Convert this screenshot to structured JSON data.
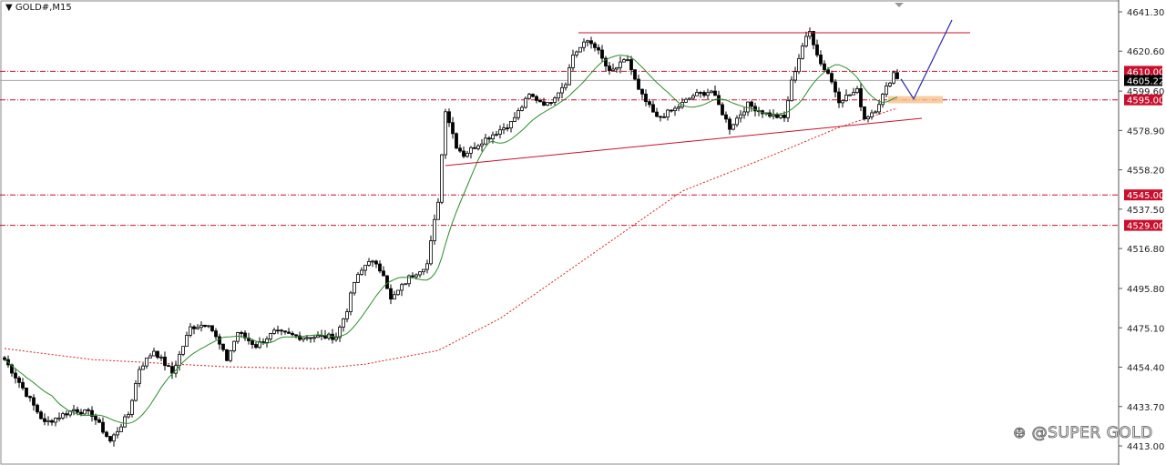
{
  "header": {
    "symbol": "GOLD#,M15",
    "menu_icon": "triangle-down-icon"
  },
  "watermark": {
    "text": "@SUPER GOLD",
    "icon": "weibo-icon"
  },
  "colors": {
    "candle": "#000000",
    "level": "#c8102e",
    "ma_fast": "#2e8b2e",
    "ma_slow": "#d62020",
    "arrow": "#2a2aa8",
    "zone": "#f5c08a",
    "bid_tag": "#000000"
  },
  "chart_data": {
    "type": "candlestick",
    "title": "",
    "y_ticks": [
      "4641.30",
      "4620.60",
      "4599.60",
      "4578.90",
      "4558.20",
      "4537.50",
      "4516.80",
      "4495.80",
      "4475.10",
      "4454.40",
      "4433.70",
      "4413.00"
    ],
    "ylim": [
      4413.0,
      4641.3
    ],
    "grid": false,
    "close_keypoints": {
      "bar": [
        0,
        4,
        11,
        19,
        24,
        29,
        34,
        37,
        41,
        46,
        51,
        56,
        61,
        64,
        69,
        74,
        81,
        91,
        94,
        96,
        100,
        104,
        106,
        111,
        116,
        119,
        121,
        124,
        126,
        131,
        139,
        144,
        149,
        154,
        156,
        160,
        162,
        166,
        171,
        174,
        179,
        184,
        189,
        194,
        199,
        204,
        209,
        214,
        216,
        219,
        221,
        224,
        226,
        229,
        234,
        236,
        239,
        241,
        244,
        245
      ],
      "price": [
        4458.4,
        4446.5,
        4424.9,
        4432.1,
        4429.7,
        4415.4,
        4429.7,
        4453.7,
        4463.2,
        4451.3,
        4475.2,
        4477.6,
        4458.4,
        4472.8,
        4465.6,
        4472.8,
        4470.4,
        4470.4,
        4484.8,
        4499.1,
        4511.1,
        4503.9,
        4489.6,
        4501.5,
        4508.7,
        4542.2,
        4590.1,
        4570.9,
        4566.1,
        4573.3,
        4582.9,
        4597.3,
        4592.5,
        4604.4,
        4618.8,
        4626.0,
        4623.6,
        4609.2,
        4616.4,
        4599.7,
        4585.3,
        4590.1,
        4597.3,
        4599.7,
        4580.5,
        4592.5,
        4587.7,
        4585.3,
        4604.4,
        4623.6,
        4630.8,
        4614.0,
        4609.2,
        4594.9,
        4599.7,
        4585.3,
        4590.1,
        4597.3,
        4609.2,
        4606.8
      ]
    },
    "slow_ma": {
      "bar": [
        0,
        24,
        61,
        86,
        99,
        119,
        136,
        161,
        186,
        211,
        229,
        244
      ],
      "price": [
        4464.2,
        4458.4,
        4454.6,
        4453.6,
        4456.0,
        4463.2,
        4480.0,
        4513.5,
        4547.0,
        4566.1,
        4580.5,
        4590.1
      ]
    },
    "levels": [
      {
        "price": 4610.0,
        "label": "4610.00"
      },
      {
        "price": 4595.0,
        "label": "4595.00"
      },
      {
        "price": 4545.0,
        "label": "4545.00"
      },
      {
        "price": 4529.0,
        "label": "4529.00"
      }
    ],
    "bid": {
      "price": 4605.22,
      "label": "4605.22"
    },
    "resistance_line": {
      "bar": [
        157.5,
        265
      ],
      "price": [
        4630.3,
        4630.3
      ]
    },
    "support_trendline": {
      "bar": [
        121,
        251.75
      ],
      "price": [
        4560.4,
        4585.3
      ]
    },
    "projection_arrow": {
      "bar": [
        246,
        249.5,
        260
      ],
      "price": [
        4606.0,
        4595.5,
        4637.0
      ]
    },
    "zone": {
      "bar": [
        242.5,
        257.5
      ],
      "price": [
        4597.0,
        4593.2
      ]
    }
  }
}
